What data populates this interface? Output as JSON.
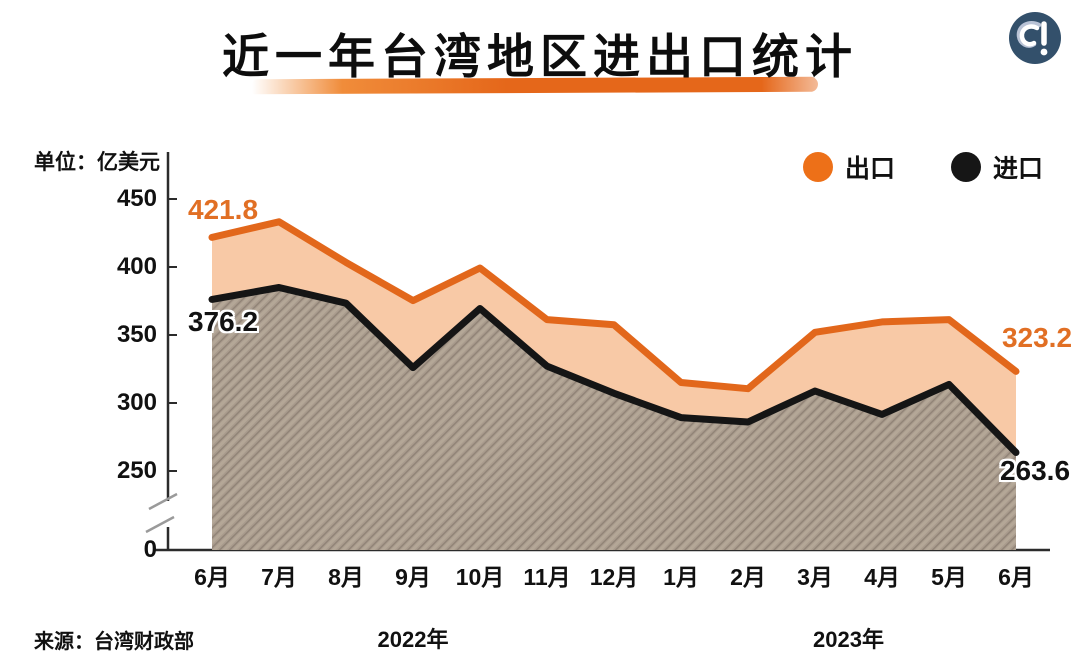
{
  "header": {
    "title": "近一年台湾地区进出口统计",
    "logo_icon": "curl-exclamation-news-logo"
  },
  "unit_label": "单位：亿美元",
  "legend": [
    {
      "label": "出口",
      "color": "#ed7018"
    },
    {
      "label": "进口",
      "color": "#161616"
    }
  ],
  "chart_data": {
    "type": "area",
    "title": "近一年台湾地区进出口统计",
    "unit": "亿美元",
    "categories": [
      "6月",
      "7月",
      "8月",
      "9月",
      "10月",
      "11月",
      "12月",
      "1月",
      "2月",
      "3月",
      "4月",
      "5月",
      "6月"
    ],
    "year_groups": [
      {
        "label": "2022年",
        "from_index": 0,
        "to_index": 6
      },
      {
        "label": "2023年",
        "from_index": 7,
        "to_index": 12
      }
    ],
    "series": [
      {
        "name": "出口",
        "values": [
          421.8,
          433.2,
          403.4,
          375.3,
          399.3,
          361.3,
          357.5,
          315.1,
          310.5,
          352.0,
          359.6,
          361.3,
          323.2
        ]
      },
      {
        "name": "进口",
        "values": [
          376.2,
          384.9,
          373.4,
          326.0,
          369.5,
          327.1,
          307.1,
          289.3,
          286.0,
          308.8,
          291.6,
          313.7,
          263.6
        ]
      }
    ],
    "yticks": [
      450,
      400,
      350,
      300,
      250,
      0
    ],
    "ylim": [
      0,
      450
    ],
    "y_axis_break": true,
    "grid": false,
    "legend_position": "top-right",
    "annotations": [
      {
        "id": "export-first",
        "series": "出口",
        "text": "421.8"
      },
      {
        "id": "import-first",
        "series": "进口",
        "text": "376.2"
      },
      {
        "id": "export-last",
        "series": "出口",
        "text": "323.2"
      },
      {
        "id": "import-last",
        "series": "进口",
        "text": "263.6"
      }
    ]
  },
  "source_label": "来源：台湾财政部",
  "colors": {
    "export_line": "#e2671b",
    "export_label": "#e16f24",
    "gap_fill": "#f8c9a6",
    "import_line": "#151515",
    "import_area_base": "#a99b8d",
    "title_underline": "#e8username6a1f",
    "underline_start": "#f08c3a",
    "underline_main": "#e5671a",
    "logo_bg": "#33506b",
    "axis": "#2b2b2b"
  }
}
